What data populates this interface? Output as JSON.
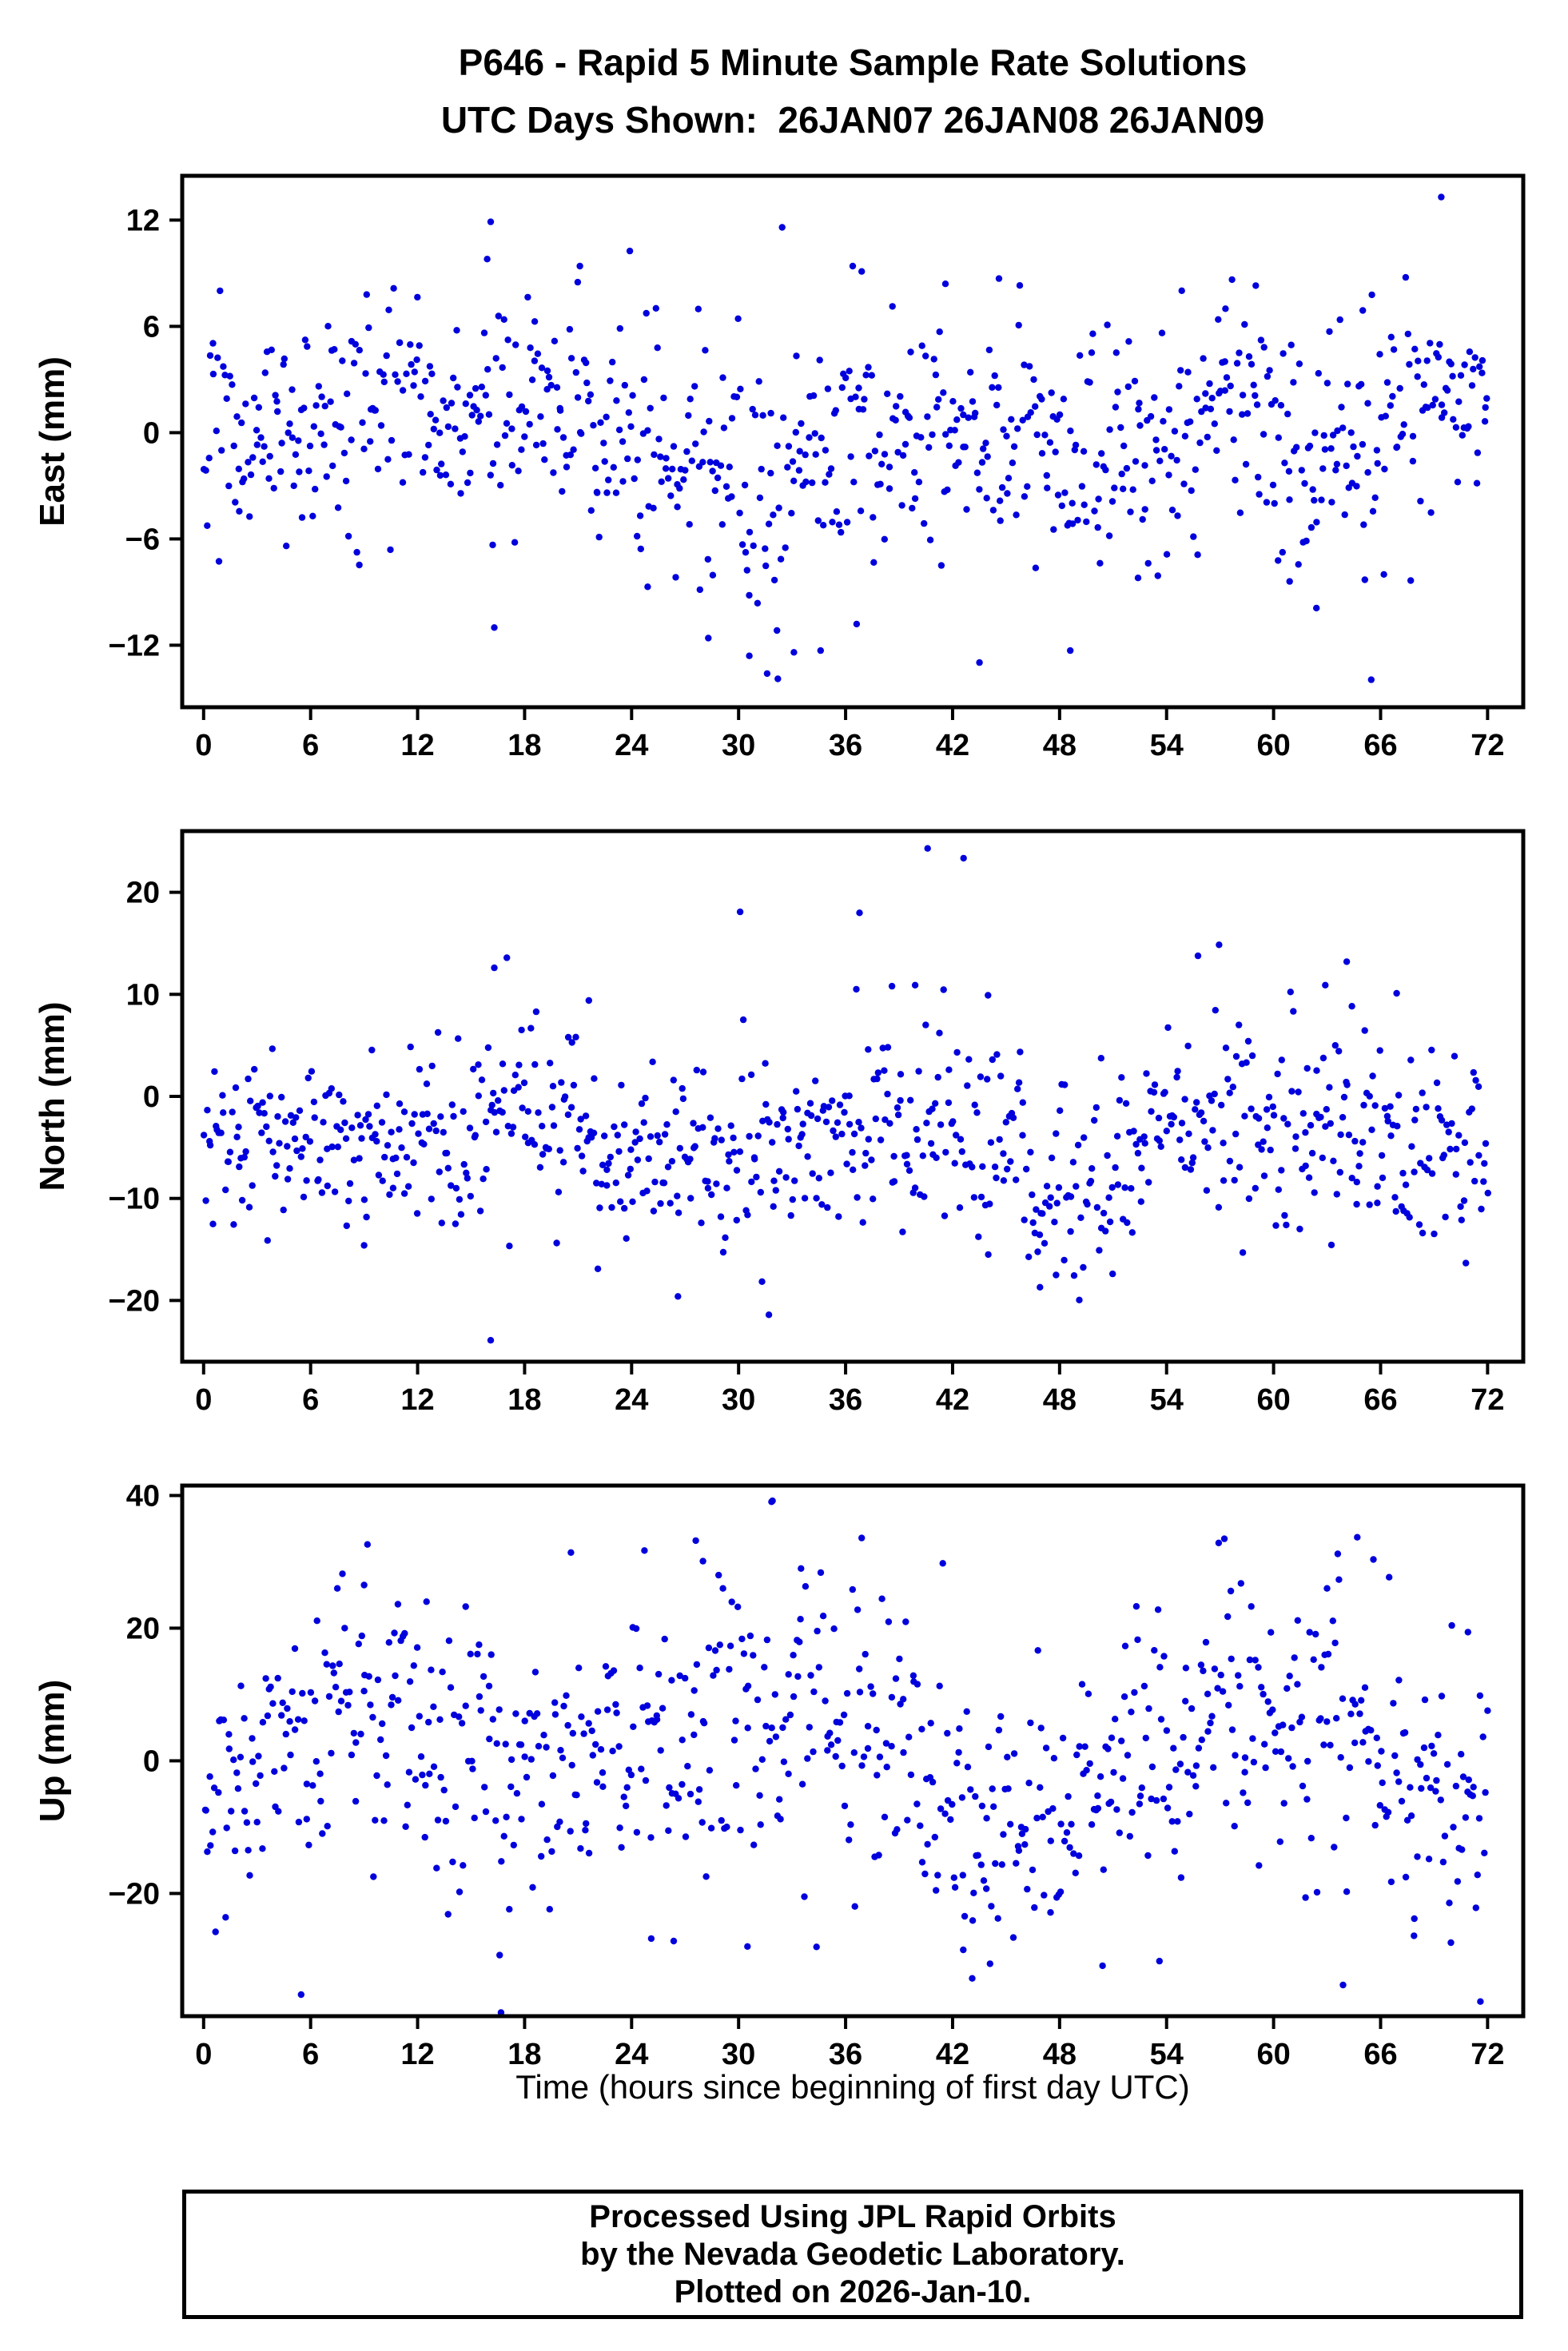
{
  "page": {
    "title_line1": "P646 - Rapid 5 Minute Sample Rate Solutions",
    "title_line2": "UTC Days Shown:  26JAN07 26JAN08 26JAN09",
    "xlabel": "Time (hours since beginning of first day UTC)",
    "footer_line1": "Processed Using JPL Rapid Orbits",
    "footer_line2": "by the Nevada Geodetic Laboratory.",
    "footer_line3": "Plotted on 2026-Jan-10."
  },
  "style": {
    "marker_color": "#0000dd",
    "frame_color": "#000000"
  },
  "chart_data": [
    {
      "type": "scatter",
      "name": "east",
      "ylabel": "East (mm)",
      "xlabel": "",
      "xlim": [
        -1.2,
        74
      ],
      "ylim": [
        -15.5,
        14.5
      ],
      "xticks": [
        0,
        6,
        12,
        18,
        24,
        30,
        36,
        42,
        48,
        54,
        60,
        66,
        72
      ],
      "yticks": [
        -12,
        -6,
        0,
        6,
        12
      ],
      "x_start": 0.05,
      "x_end": 72.0,
      "n_points": 800,
      "seed": 101,
      "point_radius": 4.2,
      "segments": [
        [
          0,
          3,
          0.2,
          3.2
        ],
        [
          3,
          9,
          0.8,
          3.2
        ],
        [
          9,
          12,
          1.5,
          3.0
        ],
        [
          12,
          15,
          0.5,
          3.0
        ],
        [
          15,
          18,
          0.8,
          3.4
        ],
        [
          18,
          22,
          2.0,
          2.8
        ],
        [
          22,
          24,
          -0.5,
          2.5
        ],
        [
          24,
          27,
          -1.5,
          3.5
        ],
        [
          27,
          30,
          -1.0,
          3.5
        ],
        [
          30,
          33,
          -2.0,
          4.0
        ],
        [
          33,
          36,
          -1.0,
          3.2
        ],
        [
          36,
          39,
          -0.5,
          3.0
        ],
        [
          39,
          42,
          -1.0,
          3.2
        ],
        [
          42,
          45,
          0.5,
          3.2
        ],
        [
          45,
          48,
          -0.5,
          3.0
        ],
        [
          48,
          51,
          -1.5,
          3.2
        ],
        [
          51,
          54,
          -0.5,
          3.0
        ],
        [
          54,
          57,
          0.5,
          3.0
        ],
        [
          57,
          60,
          1.5,
          3.0
        ],
        [
          60,
          63,
          -1.5,
          3.0
        ],
        [
          63,
          66,
          -1.0,
          3.0
        ],
        [
          66,
          69,
          1.5,
          2.8
        ],
        [
          69,
          72.3,
          2.0,
          2.6
        ]
      ],
      "outliers": [
        [
          16.1,
          11.9
        ],
        [
          15.9,
          9.8
        ],
        [
          21.1,
          9.4
        ],
        [
          24.9,
          -8.7
        ],
        [
          28.3,
          -11.6
        ],
        [
          30.6,
          -12.6
        ],
        [
          31.6,
          -13.6
        ],
        [
          32.2,
          -13.9
        ],
        [
          33.1,
          -12.4
        ],
        [
          34.6,
          -12.3
        ],
        [
          36.4,
          9.4
        ],
        [
          36.9,
          9.1
        ],
        [
          41.6,
          8.4
        ],
        [
          44.6,
          8.7
        ],
        [
          48.6,
          -12.3
        ],
        [
          52.4,
          -8.2
        ],
        [
          60.9,
          -8.4
        ],
        [
          62.4,
          -9.9
        ],
        [
          69.4,
          13.3
        ],
        [
          65.0,
          6.9
        ],
        [
          57.3,
          7.0
        ],
        [
          59.0,
          8.3
        ],
        [
          16.3,
          -11.0
        ]
      ]
    },
    {
      "type": "scatter",
      "name": "north",
      "ylabel": "North (mm)",
      "xlabel": "",
      "xlim": [
        -1.2,
        74
      ],
      "ylim": [
        -26,
        26
      ],
      "xticks": [
        0,
        6,
        12,
        18,
        24,
        30,
        36,
        42,
        48,
        54,
        60,
        66,
        72
      ],
      "yticks": [
        -20,
        -10,
        0,
        10,
        20
      ],
      "x_start": 0.05,
      "x_end": 72.0,
      "n_points": 800,
      "seed": 202,
      "point_radius": 4.2,
      "segments": [
        [
          0,
          3,
          -4.0,
          4.0
        ],
        [
          3,
          6,
          -5.0,
          4.0
        ],
        [
          6,
          9,
          -4.5,
          3.5
        ],
        [
          9,
          12,
          -4.5,
          4.0
        ],
        [
          12,
          15,
          -4.0,
          3.5
        ],
        [
          15,
          19,
          -1.0,
          4.0
        ],
        [
          19,
          22,
          -2.5,
          4.0
        ],
        [
          22,
          26,
          -6.0,
          4.0
        ],
        [
          26,
          30,
          -6.0,
          4.0
        ],
        [
          30,
          33,
          -5.0,
          4.5
        ],
        [
          33,
          36,
          -4.0,
          4.0
        ],
        [
          36,
          40,
          -3.0,
          5.0
        ],
        [
          40,
          43,
          -2.5,
          5.0
        ],
        [
          43,
          46,
          -4.0,
          5.0
        ],
        [
          46,
          51,
          -8.5,
          4.5
        ],
        [
          51,
          54,
          -3.0,
          4.5
        ],
        [
          54,
          58,
          -1.5,
          4.0
        ],
        [
          58,
          62,
          -4.0,
          4.5
        ],
        [
          62,
          66,
          -4.0,
          5.0
        ],
        [
          66,
          69,
          -5.0,
          4.0
        ],
        [
          69,
          72.3,
          -5.0,
          4.5
        ]
      ],
      "outliers": [
        [
          16.3,
          12.6
        ],
        [
          16.1,
          -23.9
        ],
        [
          31.7,
          -21.4
        ],
        [
          26.6,
          -19.6
        ],
        [
          40.6,
          24.3
        ],
        [
          38.6,
          10.8
        ],
        [
          39.9,
          10.9
        ],
        [
          46.9,
          -18.7
        ],
        [
          47.8,
          -17.5
        ],
        [
          64.1,
          13.2
        ],
        [
          62.9,
          10.9
        ],
        [
          21.6,
          9.4
        ],
        [
          9.0,
          -14.6
        ],
        [
          44.0,
          -15.5
        ],
        [
          66.9,
          10.1
        ],
        [
          36.6,
          10.5
        ]
      ]
    },
    {
      "type": "scatter",
      "name": "up",
      "ylabel": "Up (mm)",
      "xlabel": "Time (hours since beginning of first day UTC)",
      "xlim": [
        -1.2,
        74
      ],
      "ylim": [
        -38.5,
        41.5
      ],
      "xticks": [
        0,
        6,
        12,
        18,
        24,
        30,
        36,
        42,
        48,
        54,
        60,
        66,
        72
      ],
      "yticks": [
        -20,
        0,
        20,
        40
      ],
      "x_start": 0.05,
      "x_end": 72.0,
      "n_points": 760,
      "seed": 303,
      "point_radius": 4.2,
      "segments": [
        [
          0,
          3,
          -4,
          9
        ],
        [
          3,
          6,
          0,
          9
        ],
        [
          6,
          9,
          6,
          10
        ],
        [
          9,
          12,
          6,
          10
        ],
        [
          12,
          16,
          2,
          10
        ],
        [
          16,
          20,
          -3,
          10
        ],
        [
          20,
          24,
          2,
          9
        ],
        [
          24,
          28,
          2,
          11
        ],
        [
          28,
          32,
          4,
          11
        ],
        [
          32,
          36,
          6,
          11
        ],
        [
          36,
          40,
          4,
          11
        ],
        [
          40,
          43,
          -4,
          11
        ],
        [
          43,
          48,
          -9,
          9
        ],
        [
          48,
          52,
          -6,
          9
        ],
        [
          52,
          56,
          -2,
          10
        ],
        [
          56,
          60,
          6,
          10
        ],
        [
          60,
          64,
          3,
          11
        ],
        [
          64,
          67,
          2,
          10
        ],
        [
          67,
          70,
          -5,
          9
        ],
        [
          70,
          72.3,
          -8,
          9
        ]
      ],
      "outliers": [
        [
          31.9,
          39.2
        ],
        [
          20.6,
          31.4
        ],
        [
          27.6,
          33.2
        ],
        [
          28.0,
          30.1
        ],
        [
          36.9,
          33.6
        ],
        [
          33.5,
          29.0
        ],
        [
          57.6,
          25.6
        ],
        [
          63.6,
          31.2
        ],
        [
          63.0,
          26.0
        ],
        [
          70.9,
          19.4
        ],
        [
          71.6,
          -36.3
        ],
        [
          43.1,
          -32.8
        ],
        [
          44.1,
          -30.6
        ],
        [
          42.6,
          -28.5
        ],
        [
          16.6,
          -29.3
        ],
        [
          53.6,
          -30.2
        ],
        [
          25.1,
          -26.8
        ],
        [
          9.0,
          26.5
        ],
        [
          7.5,
          26.0
        ],
        [
          12.5,
          24.0
        ],
        [
          30.5,
          -28.0
        ]
      ]
    }
  ]
}
